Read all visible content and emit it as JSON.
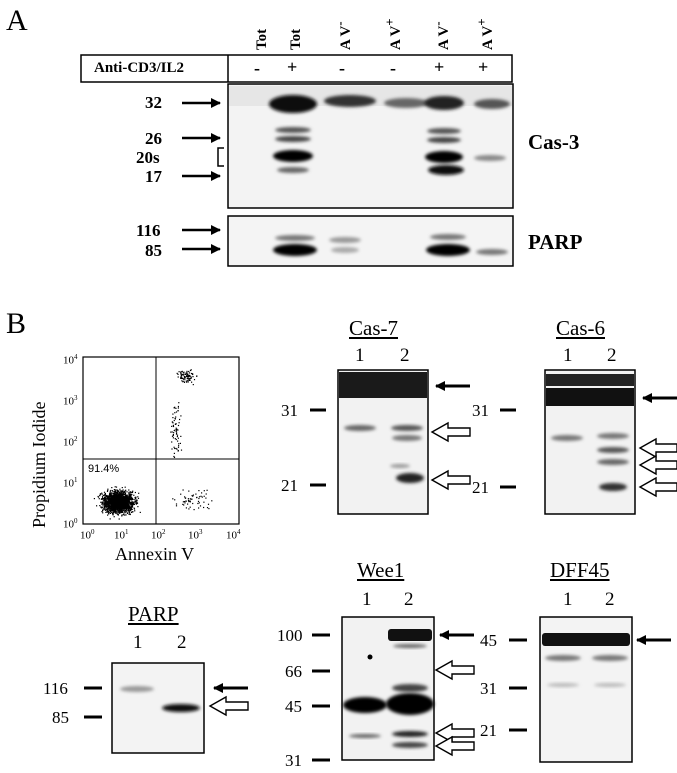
{
  "panel_a": {
    "letter": "A",
    "lane_headers": [
      "Tot",
      "Tot",
      "A V",
      "A V",
      "A V",
      "A V"
    ],
    "lane_header_sup": [
      "",
      "",
      "-",
      "+",
      "-",
      "+"
    ],
    "treatment_label": "Anti-CD3/IL2",
    "treatment_signs": [
      "-",
      "+",
      "-",
      "-",
      "+",
      "+"
    ],
    "cas3_label": "Cas-3",
    "parp_label": "PARP",
    "cas3_markers": [
      "32",
      "26",
      "20s",
      "17"
    ],
    "parp_markers": [
      "116",
      "85"
    ]
  },
  "panel_b": {
    "letter": "B",
    "flow": {
      "y_label": "Propidium Iodide",
      "x_label": "Annexin V",
      "quadrant_percent": "91.4%",
      "tick_base": "10",
      "tick_exponents": [
        "0",
        "1",
        "2",
        "3",
        "4"
      ]
    },
    "cas7": {
      "title": "Cas-7",
      "lanes": [
        "1",
        "2"
      ],
      "markers": [
        "31",
        "21"
      ]
    },
    "cas6": {
      "title": "Cas-6",
      "lanes": [
        "1",
        "2"
      ],
      "markers": [
        "31",
        "21"
      ]
    },
    "parp": {
      "title": "PARP",
      "lanes": [
        "1",
        "2"
      ],
      "markers": [
        "116",
        "85"
      ]
    },
    "wee1": {
      "title": "Wee1",
      "lanes": [
        "1",
        "2"
      ],
      "markers": [
        "100",
        "66",
        "45",
        "31"
      ]
    },
    "dff45": {
      "title": "DFF45",
      "lanes": [
        "1",
        "2"
      ],
      "markers": [
        "45",
        "31",
        "21"
      ]
    }
  }
}
